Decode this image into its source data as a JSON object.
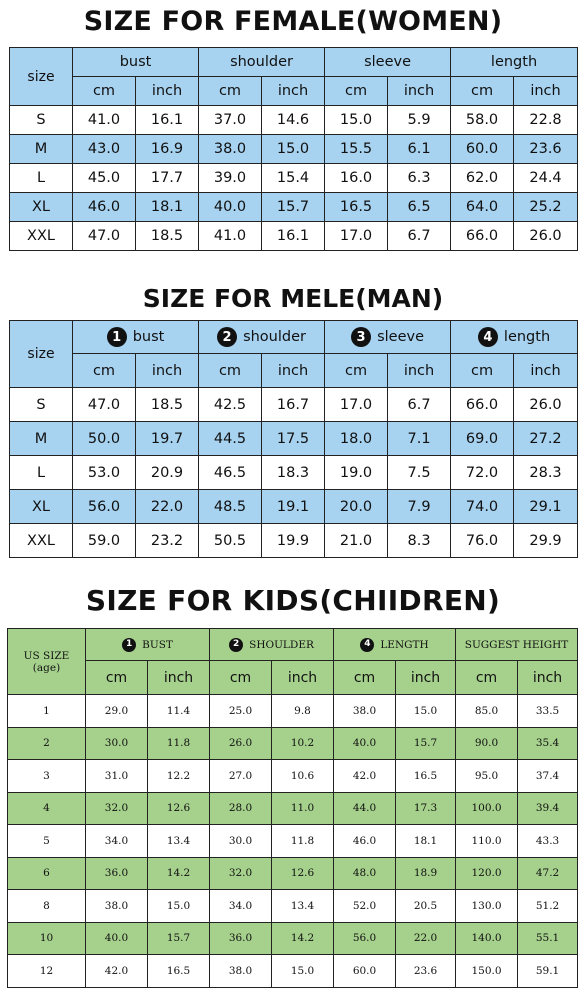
{
  "women": {
    "title": "SIZE FOR FEMALE(WOMEN)",
    "size_label": "size",
    "groups": [
      "bust",
      "shoulder",
      "sleeve",
      "length"
    ],
    "units": [
      "cm",
      "inch",
      "cm",
      "inch",
      "cm",
      "inch",
      "cm",
      "inch"
    ],
    "rows": [
      [
        "S",
        "41.0",
        "16.1",
        "37.0",
        "14.6",
        "15.0",
        "5.9",
        "58.0",
        "22.8"
      ],
      [
        "M",
        "43.0",
        "16.9",
        "38.0",
        "15.0",
        "15.5",
        "6.1",
        "60.0",
        "23.6"
      ],
      [
        "L",
        "45.0",
        "17.7",
        "39.0",
        "15.4",
        "16.0",
        "6.3",
        "62.0",
        "24.4"
      ],
      [
        "XL",
        "46.0",
        "18.1",
        "40.0",
        "15.7",
        "16.5",
        "6.5",
        "64.0",
        "25.2"
      ],
      [
        "XXL",
        "47.0",
        "18.5",
        "41.0",
        "16.1",
        "17.0",
        "6.7",
        "66.0",
        "26.0"
      ]
    ]
  },
  "men": {
    "title": "SIZE FOR MELE(MAN)",
    "size_label": "size",
    "groups": [
      {
        "num": "1",
        "label": "bust"
      },
      {
        "num": "2",
        "label": "shoulder"
      },
      {
        "num": "3",
        "label": "sleeve"
      },
      {
        "num": "4",
        "label": "length"
      }
    ],
    "units": [
      "cm",
      "inch",
      "cm",
      "inch",
      "cm",
      "inch",
      "cm",
      "inch"
    ],
    "rows": [
      [
        "S",
        "47.0",
        "18.5",
        "42.5",
        "16.7",
        "17.0",
        "6.7",
        "66.0",
        "26.0"
      ],
      [
        "M",
        "50.0",
        "19.7",
        "44.5",
        "17.5",
        "18.0",
        "7.1",
        "69.0",
        "27.2"
      ],
      [
        "L",
        "53.0",
        "20.9",
        "46.5",
        "18.3",
        "19.0",
        "7.5",
        "72.0",
        "28.3"
      ],
      [
        "XL",
        "56.0",
        "22.0",
        "48.5",
        "19.1",
        "20.0",
        "7.9",
        "74.0",
        "29.1"
      ],
      [
        "XXL",
        "59.0",
        "23.2",
        "50.5",
        "19.9",
        "21.0",
        "8.3",
        "76.0",
        "29.9"
      ]
    ]
  },
  "kids": {
    "title": "SIZE FOR KIDS(CHIIDREN)",
    "size_label": "US SIZE",
    "size_sub": "(age)",
    "groups": [
      {
        "num": "1",
        "label": "BUST"
      },
      {
        "num": "2",
        "label": "SHOULDER"
      },
      {
        "num": "4",
        "label": "LENGTH"
      },
      {
        "num": "",
        "label": "SUGGEST HEIGHT"
      }
    ],
    "units": [
      "cm",
      "inch",
      "cm",
      "inch",
      "cm",
      "inch",
      "cm",
      "inch"
    ],
    "rows": [
      [
        "1",
        "29.0",
        "11.4",
        "25.0",
        "9.8",
        "38.0",
        "15.0",
        "85.0",
        "33.5"
      ],
      [
        "2",
        "30.0",
        "11.8",
        "26.0",
        "10.2",
        "40.0",
        "15.7",
        "90.0",
        "35.4"
      ],
      [
        "3",
        "31.0",
        "12.2",
        "27.0",
        "10.6",
        "42.0",
        "16.5",
        "95.0",
        "37.4"
      ],
      [
        "4",
        "32.0",
        "12.6",
        "28.0",
        "11.0",
        "44.0",
        "17.3",
        "100.0",
        "39.4"
      ],
      [
        "5",
        "34.0",
        "13.4",
        "30.0",
        "11.8",
        "46.0",
        "18.1",
        "110.0",
        "43.3"
      ],
      [
        "6",
        "36.0",
        "14.2",
        "32.0",
        "12.6",
        "48.0",
        "18.9",
        "120.0",
        "47.2"
      ],
      [
        "8",
        "38.0",
        "15.0",
        "34.0",
        "13.4",
        "52.0",
        "20.5",
        "130.0",
        "51.2"
      ],
      [
        "10",
        "40.0",
        "15.7",
        "36.0",
        "14.2",
        "56.0",
        "22.0",
        "140.0",
        "55.1"
      ],
      [
        "12",
        "42.0",
        "16.5",
        "38.0",
        "15.0",
        "60.0",
        "23.6",
        "150.0",
        "59.1"
      ]
    ]
  },
  "colors": {
    "blue_fill": "#a7d3f1",
    "green_fill": "#a6d18c",
    "border": "#222222"
  }
}
